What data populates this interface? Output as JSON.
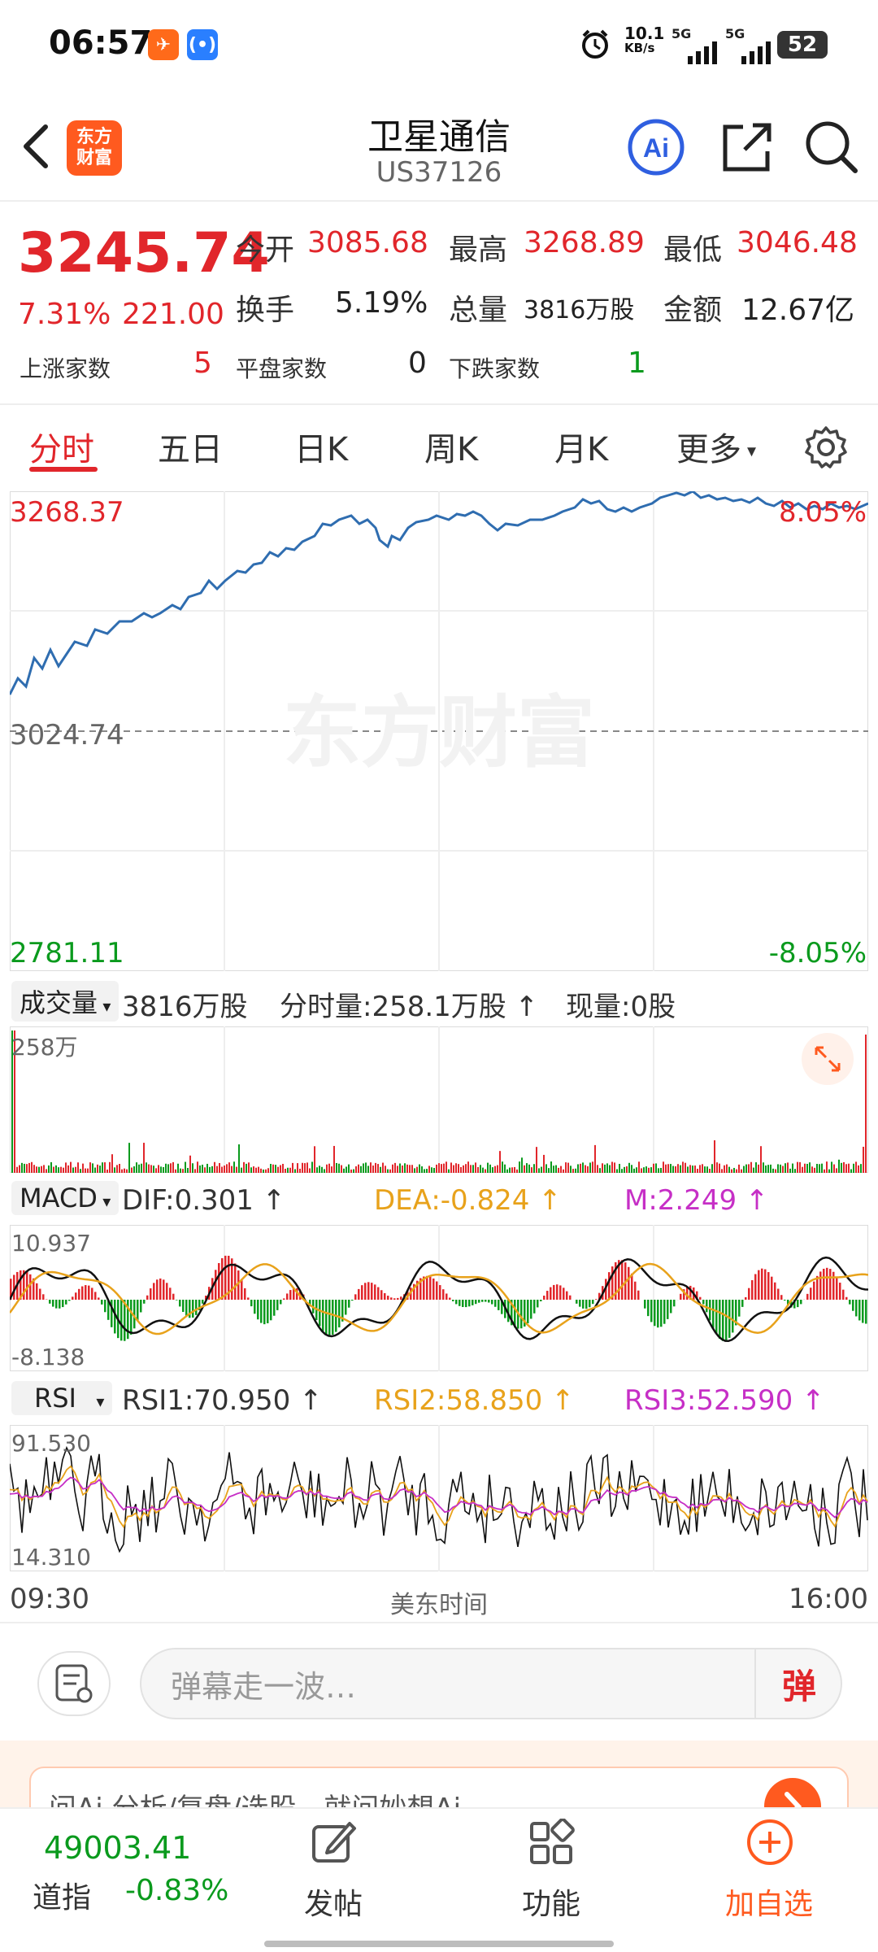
{
  "status_bar": {
    "time": "06:57",
    "speed": "10.1",
    "speed_unit": "KB/s",
    "net1": "5G",
    "net2": "5G",
    "battery": "52"
  },
  "header": {
    "logo_line1": "东方",
    "logo_line2": "财富",
    "title": "卫星通信",
    "code": "US37126",
    "ai_label": "Ai"
  },
  "quote": {
    "price": "3245.74",
    "change_pct": "7.31%",
    "change": "221.00",
    "open_label": "今开",
    "open": "3085.68",
    "high_label": "最高",
    "high": "3268.89",
    "low_label": "最低",
    "low": "3046.48",
    "turnover_label": "换手",
    "turnover": "5.19%",
    "volume_label": "总量",
    "volume": "3816万股",
    "amount_label": "金额",
    "amount": "12.67亿",
    "up_label": "上涨家数",
    "up": "5",
    "flat_label": "平盘家数",
    "flat": "0",
    "down_label": "下跌家数",
    "down": "1"
  },
  "tabs": [
    "分时",
    "五日",
    "日K",
    "周K",
    "月K",
    "更多"
  ],
  "price_chart": {
    "top": "3268.37",
    "mid": "3024.74",
    "bottom": "2781.11",
    "top_pct": "8.05%",
    "bottom_pct": "-8.05%",
    "watermark": "东方财富"
  },
  "volume_panel": {
    "selector": "成交量",
    "total": "3816万股",
    "minute_label": "分时量:258.1万股",
    "now_label": "现量:0股",
    "axis_max": "258万"
  },
  "macd_panel": {
    "selector": "MACD",
    "dif": "DIF:0.301",
    "dea": "DEA:-0.824",
    "m": "M:2.249",
    "axis_max": "10.937",
    "axis_min": "-8.138"
  },
  "rsi_panel": {
    "selector": "RSI",
    "rsi1": "RSI1:70.950",
    "rsi2": "RSI2:58.850",
    "rsi3": "RSI3:52.590",
    "axis_max": "91.530",
    "axis_min": "14.310"
  },
  "time_axis": {
    "start": "09:30",
    "mid": "美东时间",
    "end": "16:00"
  },
  "danmu": {
    "placeholder": "弹幕走一波…",
    "button": "弹"
  },
  "promo": {
    "text": "问Ai  分析/复盘/选股，就问妙想Ai"
  },
  "bottom_bar": {
    "index_value": "49003.41",
    "index_name": "道指",
    "index_change": "-0.83%",
    "post": "发帖",
    "func": "功能",
    "add": "加自选"
  },
  "colors": {
    "up": "#e1262b",
    "down": "#0a9a1d",
    "price_line": "#2f6db0",
    "dea": "#e8a21b",
    "m": "#c62fc6",
    "accent": "#ff5a1f"
  }
}
